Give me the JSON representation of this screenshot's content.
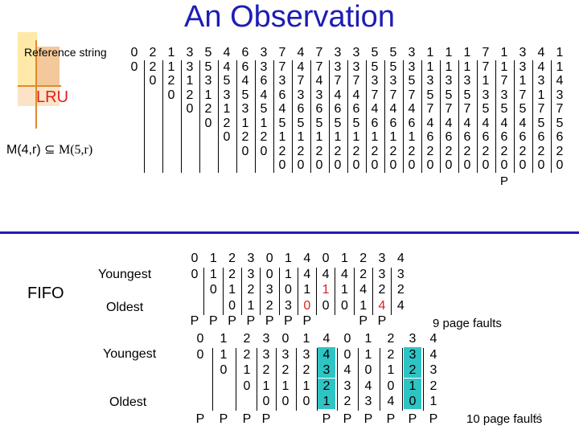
{
  "slide": {
    "title": "An Observation",
    "reference_label": "Reference string",
    "lru_label": "LRU",
    "m_label": "M(4,r)",
    "m_symbol": "⊆",
    "m_rhs": "M(5,r)",
    "fifo_label": "FIFO",
    "youngest_label": "Youngest",
    "oldest_label": "Oldest",
    "fifo3_faults": "9 page faults",
    "fifo4_faults": "10 page faults",
    "page_number": "11"
  },
  "lru_table": {
    "reference_string": [
      "0",
      "2",
      "1",
      "3",
      "5",
      "4",
      "6",
      "3",
      "7",
      "4",
      "7",
      "3",
      "3",
      "5",
      "5",
      "3",
      "1",
      "1",
      "1",
      "7",
      "1",
      "3",
      "4",
      "1"
    ],
    "rows": [
      [
        "0",
        "2",
        "1",
        "3",
        "5",
        "4",
        "6",
        "3",
        "7",
        "4",
        "7",
        "3",
        "3",
        "5",
        "5",
        "3",
        "1",
        "1",
        "1",
        "7",
        "1",
        "3",
        "4",
        "1"
      ],
      [
        "",
        "0",
        "2",
        "1",
        "3",
        "5",
        "4",
        "6",
        "3",
        "7",
        "4",
        "7",
        "7",
        "3",
        "3",
        "5",
        "3",
        "3",
        "3",
        "1",
        "7",
        "1",
        "3",
        "4"
      ],
      [
        "",
        "",
        "0",
        "2",
        "1",
        "3",
        "5",
        "4",
        "6",
        "3",
        "3",
        "4",
        "4",
        "7",
        "7",
        "7",
        "5",
        "5",
        "5",
        "3",
        "3",
        "7",
        "1",
        "3"
      ],
      [
        "",
        "",
        "",
        "0",
        "2",
        "1",
        "3",
        "5",
        "4",
        "6",
        "6",
        "6",
        "6",
        "4",
        "4",
        "4",
        "7",
        "7",
        "7",
        "5",
        "5",
        "5",
        "7",
        "7"
      ],
      [
        "",
        "",
        "",
        "",
        "0",
        "2",
        "1",
        "1",
        "5",
        "5",
        "5",
        "5",
        "5",
        "6",
        "6",
        "6",
        "4",
        "4",
        "4",
        "4",
        "4",
        "4",
        "5",
        "5"
      ],
      [
        "",
        "",
        "",
        "",
        "",
        "0",
        "2",
        "2",
        "1",
        "1",
        "1",
        "1",
        "1",
        "1",
        "1",
        "1",
        "6",
        "6",
        "6",
        "6",
        "6",
        "6",
        "6",
        "6"
      ],
      [
        "",
        "",
        "",
        "",
        "",
        "",
        "0",
        "0",
        "2",
        "2",
        "2",
        "2",
        "2",
        "2",
        "2",
        "2",
        "2",
        "2",
        "2",
        "2",
        "2",
        "2",
        "2",
        "2"
      ],
      [
        "",
        "",
        "",
        "",
        "",
        "",
        "",
        "",
        "0",
        "0",
        "0",
        "0",
        "0",
        "0",
        "0",
        "0",
        "0",
        "0",
        "0",
        "0",
        "0",
        "0",
        "0",
        "0"
      ]
    ],
    "fault_row": [
      "",
      "",
      "",
      "",
      "",
      "",
      "",
      "",
      "",
      "",
      "",
      "",
      "",
      "",
      "",
      "",
      "",
      "",
      "",
      "",
      "P",
      "",
      "",
      ""
    ]
  },
  "fifo3": {
    "reference_string": [
      "0",
      "1",
      "2",
      "3",
      "0",
      "1",
      "4",
      "0",
      "1",
      "2",
      "3",
      "4"
    ],
    "frames": [
      [
        "0",
        "1",
        "2",
        "3",
        "0",
        "1",
        "4",
        "4",
        "4",
        "2",
        "3",
        "3"
      ],
      [
        "",
        "0",
        "1",
        "2",
        "3",
        "0",
        "1",
        "1",
        "1",
        "4",
        "2",
        "2"
      ],
      [
        "",
        "",
        "0",
        "1",
        "2",
        "3",
        "0",
        "0",
        "0",
        "1",
        "4",
        "4"
      ]
    ],
    "faults": [
      "P",
      "P",
      "P",
      "P",
      "P",
      "P",
      "P",
      "",
      "",
      "P",
      "P",
      ""
    ]
  },
  "fifo4": {
    "reference_string": [
      "0",
      "1",
      "2",
      "3",
      "0",
      "1",
      "4",
      "0",
      "1",
      "2",
      "3",
      "4"
    ],
    "frames": [
      [
        "0",
        "1",
        "2",
        "3",
        "3",
        "3",
        "4",
        "0",
        "1",
        "2",
        "3",
        "4"
      ],
      [
        "",
        "0",
        "1",
        "2",
        "2",
        "2",
        "3",
        "4",
        "0",
        "1",
        "2",
        "3"
      ],
      [
        "",
        "",
        "0",
        "1",
        "1",
        "1",
        "2",
        "3",
        "4",
        "0",
        "1",
        "2"
      ],
      [
        "",
        "",
        "",
        "0",
        "0",
        "0",
        "1",
        "2",
        "3",
        "4",
        "0",
        "1"
      ]
    ],
    "faults": [
      "P",
      "P",
      "P",
      "P",
      "",
      "",
      "P",
      "P",
      "P",
      "P",
      "P",
      "P"
    ]
  }
}
